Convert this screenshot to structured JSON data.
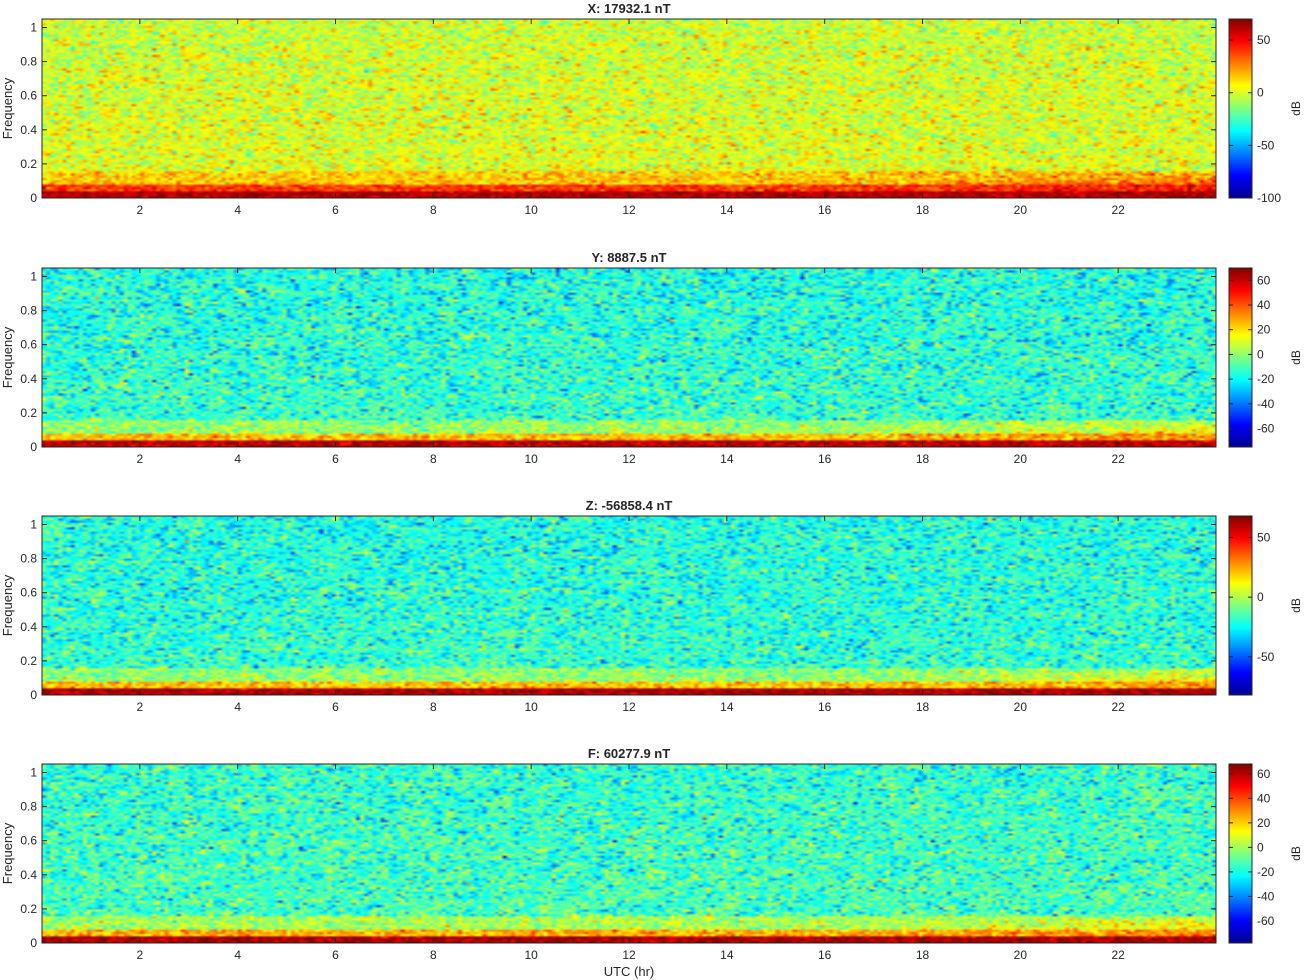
{
  "figure": {
    "xlabel": "UTC (hr)",
    "colormap": "jet",
    "jet_stops": [
      "#00008f",
      "#0000ff",
      "#00ffff",
      "#ffff00",
      "#ff0000",
      "#800000"
    ]
  },
  "chart_data": [
    {
      "type": "heatmap",
      "title": "X: 17932.1 nT",
      "xlabel": "",
      "ylabel": "Frequency",
      "xlim": [
        0,
        24
      ],
      "ylim": [
        0,
        1.05
      ],
      "x_ticks": [
        2,
        4,
        6,
        8,
        10,
        12,
        14,
        16,
        18,
        20,
        22
      ],
      "y_ticks": [
        0,
        0.2,
        0.4,
        0.6,
        0.8,
        1
      ],
      "colorbar": {
        "label": "dB",
        "clim": [
          -100,
          70
        ],
        "ticks": [
          -100,
          -50,
          0,
          50
        ]
      },
      "background_db": 0
    },
    {
      "type": "heatmap",
      "title": "Y: 8887.5 nT",
      "xlabel": "",
      "ylabel": "Frequency",
      "xlim": [
        0,
        24
      ],
      "ylim": [
        0,
        1.05
      ],
      "x_ticks": [
        2,
        4,
        6,
        8,
        10,
        12,
        14,
        16,
        18,
        20,
        22
      ],
      "y_ticks": [
        0,
        0.2,
        0.4,
        0.6,
        0.8,
        1
      ],
      "colorbar": {
        "label": "dB",
        "clim": [
          -75,
          70
        ],
        "ticks": [
          -60,
          -40,
          -20,
          0,
          20,
          40,
          60
        ]
      },
      "background_db": -15
    },
    {
      "type": "heatmap",
      "title": "Z: -56858.4 nT",
      "xlabel": "",
      "ylabel": "Frequency",
      "xlim": [
        0,
        24
      ],
      "ylim": [
        0,
        1.05
      ],
      "x_ticks": [
        2,
        4,
        6,
        8,
        10,
        12,
        14,
        16,
        18,
        20,
        22
      ],
      "y_ticks": [
        0,
        0.2,
        0.4,
        0.6,
        0.8,
        1
      ],
      "colorbar": {
        "label": "dB",
        "clim": [
          -82,
          68
        ],
        "ticks": [
          -50,
          0,
          50
        ]
      },
      "background_db": -20
    },
    {
      "type": "heatmap",
      "title": "F: 60277.9 nT",
      "xlabel": "UTC (hr)",
      "ylabel": "Frequency",
      "xlim": [
        0,
        24
      ],
      "ylim": [
        0,
        1.05
      ],
      "x_ticks": [
        2,
        4,
        6,
        8,
        10,
        12,
        14,
        16,
        18,
        20,
        22
      ],
      "y_ticks": [
        0,
        0.2,
        0.4,
        0.6,
        0.8,
        1
      ],
      "colorbar": {
        "label": "dB",
        "clim": [
          -78,
          68
        ],
        "ticks": [
          -60,
          -40,
          -20,
          0,
          20,
          40,
          60
        ]
      },
      "background_db": -15
    }
  ]
}
